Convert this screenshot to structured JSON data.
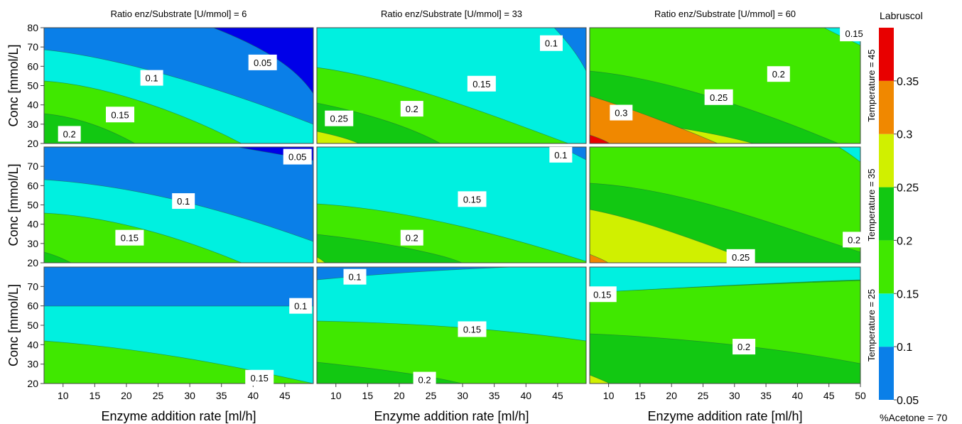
{
  "chart_data": {
    "type": "contour",
    "x_label": "Enzyme addition rate [ml/h]",
    "y_label": "Conc [mmol/L]",
    "x_ticks_first_two_columns": [
      10,
      15,
      20,
      25,
      30,
      35,
      40,
      45
    ],
    "x_ticks_last_column": [
      10,
      15,
      20,
      25,
      30,
      35,
      40,
      45,
      50
    ],
    "x_range_first_two_columns": [
      7,
      49.5
    ],
    "x_range_last_column": [
      7,
      50
    ],
    "y_ticks": [
      20,
      30,
      40,
      50,
      60,
      70,
      80
    ],
    "y_ticks_lower_rows": [
      20,
      30,
      40,
      50,
      60,
      70
    ],
    "y_range": [
      20,
      80
    ],
    "column_titles": [
      "Ratio enz/Substrate [U/mmol] = 6",
      "Ratio enz/Substrate [U/mmol] = 33",
      "Ratio enz/Substrate [U/mmol] = 60"
    ],
    "row_labels": [
      "Temperature = 45",
      "Temperature = 35",
      "Temperature = 25"
    ],
    "footer": "%Acetone = 70",
    "colorbar": {
      "title": "Labruscol",
      "levels": [
        0.05,
        0.1,
        0.15,
        0.2,
        0.25,
        0.3,
        0.35,
        0.4
      ],
      "tick_labels": [
        "0.05",
        "0.1",
        "0.15",
        "0.2",
        "0.25",
        "0.3",
        "0.35"
      ],
      "colors": [
        "#0a7fe8",
        "#00f0e0",
        "#40e800",
        "#12c812",
        "#d0f000",
        "#f08800",
        "#e80000"
      ],
      "below_range_color": "#0000e8"
    },
    "panels": [
      {
        "row": 0,
        "col": 0,
        "labels": [
          {
            "text": "0.05",
            "x": 41.5,
            "y": 62
          },
          {
            "text": "0.1",
            "x": 24,
            "y": 54
          },
          {
            "text": "0.15",
            "x": 19,
            "y": 35
          },
          {
            "text": "0.2",
            "x": 11,
            "y": 25
          }
        ]
      },
      {
        "row": 0,
        "col": 1,
        "labels": [
          {
            "text": "0.1",
            "x": 44,
            "y": 72
          },
          {
            "text": "0.15",
            "x": 33,
            "y": 51
          },
          {
            "text": "0.2",
            "x": 22,
            "y": 38
          },
          {
            "text": "0.25",
            "x": 10.5,
            "y": 33
          }
        ]
      },
      {
        "row": 0,
        "col": 2,
        "labels": [
          {
            "text": "0.15",
            "x": 49,
            "y": 77
          },
          {
            "text": "0.2",
            "x": 37,
            "y": 56
          },
          {
            "text": "0.25",
            "x": 27.5,
            "y": 44
          },
          {
            "text": "0.3",
            "x": 12,
            "y": 36
          }
        ]
      },
      {
        "row": 1,
        "col": 0,
        "labels": [
          {
            "text": "0.05",
            "x": 47,
            "y": 75
          },
          {
            "text": "0.1",
            "x": 29,
            "y": 52
          },
          {
            "text": "0.15",
            "x": 20.5,
            "y": 33
          }
        ]
      },
      {
        "row": 1,
        "col": 1,
        "labels": [
          {
            "text": "0.1",
            "x": 45.5,
            "y": 76
          },
          {
            "text": "0.15",
            "x": 31.5,
            "y": 53
          },
          {
            "text": "0.2",
            "x": 22,
            "y": 33
          }
        ]
      },
      {
        "row": 1,
        "col": 2,
        "labels": [
          {
            "text": "0.2",
            "x": 49,
            "y": 32
          },
          {
            "text": "0.25",
            "x": 31,
            "y": 23
          }
        ]
      },
      {
        "row": 2,
        "col": 0,
        "labels": [
          {
            "text": "0.1",
            "x": 47.5,
            "y": 60
          },
          {
            "text": "0.15",
            "x": 41,
            "y": 23
          }
        ]
      },
      {
        "row": 2,
        "col": 1,
        "labels": [
          {
            "text": "0.1",
            "x": 13,
            "y": 75
          },
          {
            "text": "0.15",
            "x": 31.5,
            "y": 48
          },
          {
            "text": "0.2",
            "x": 24,
            "y": 22
          }
        ]
      },
      {
        "row": 2,
        "col": 2,
        "labels": [
          {
            "text": "0.15",
            "x": 9,
            "y": 66
          },
          {
            "text": "0.2",
            "x": 31.5,
            "y": 39
          }
        ]
      }
    ]
  }
}
